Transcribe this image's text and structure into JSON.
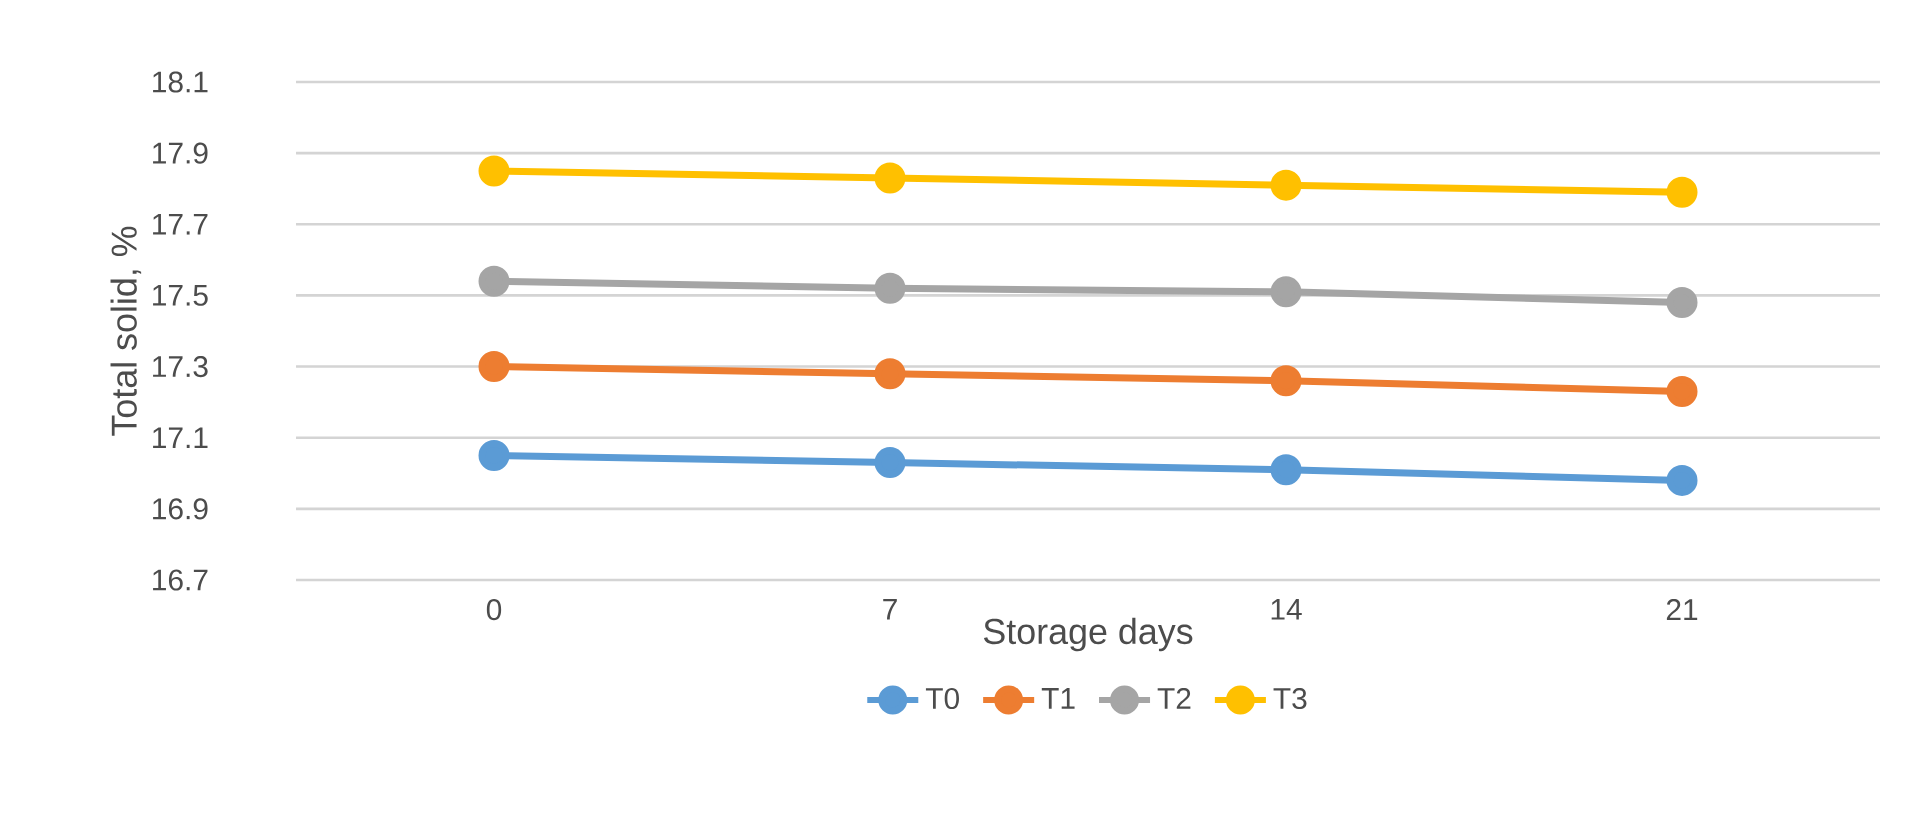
{
  "chart_data": {
    "type": "line",
    "xlabel": "Storage days",
    "ylabel": "Total solid, %",
    "categories": [
      "0",
      "7",
      "14",
      "21"
    ],
    "series": [
      {
        "name": "T0",
        "color": "#5b9bd5",
        "values": [
          17.05,
          17.03,
          17.01,
          16.98
        ]
      },
      {
        "name": "T1",
        "color": "#ed7d31",
        "values": [
          17.3,
          17.28,
          17.26,
          17.23
        ]
      },
      {
        "name": "T2",
        "color": "#a5a5a5",
        "values": [
          17.54,
          17.52,
          17.51,
          17.48
        ]
      },
      {
        "name": "T3",
        "color": "#ffc000",
        "values": [
          17.85,
          17.83,
          17.81,
          17.79
        ]
      }
    ],
    "ylim": [
      16.7,
      18.1
    ],
    "yticks": [
      16.7,
      16.9,
      17.1,
      17.3,
      17.5,
      17.7,
      17.9,
      18.1
    ],
    "grid": "y",
    "legend": "bottom",
    "marker": "circle",
    "line_style": "solid"
  }
}
